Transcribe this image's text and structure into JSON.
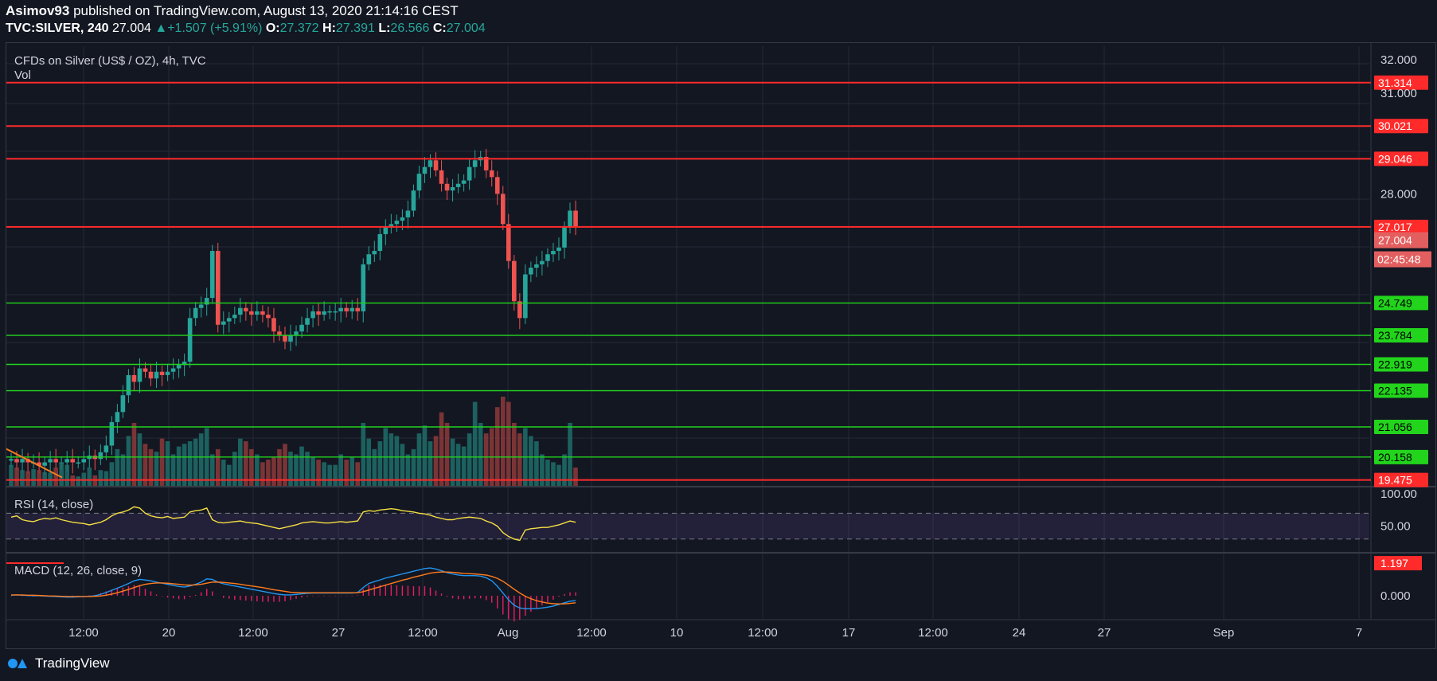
{
  "header": {
    "author": "Asimov93",
    "published": "published on TradingView.com, August 13, 2020 21:14:16 CEST",
    "symbol": "TVC:SILVER, 240",
    "last": "27.004",
    "change_arrow": "▲",
    "change": "+1.507 (+5.91%)",
    "o_label": "O:",
    "o": "27.372",
    "h_label": "H:",
    "h": "27.391",
    "l_label": "L:",
    "l": "26.566",
    "c_label": "C:",
    "c": "27.004"
  },
  "footer": {
    "brand": "TradingView"
  },
  "colors": {
    "background": "#131722",
    "up": "#26a69a",
    "down": "#ef5350",
    "resistance": "#ff2b2b",
    "support": "#22d41c",
    "rsi": "#f5e043",
    "macd": "#2196f3",
    "signal": "#ff7b1c",
    "histogram": "#e91e63"
  },
  "chart_data": [
    {
      "type": "candlestick",
      "title": "CFDs on Silver (US$ / OZ), 4h, TVC",
      "volume_label": "Vol",
      "ylim": [
        19.3,
        32.4
      ],
      "y_ticks": [
        "32.000",
        "31.000",
        "28.000"
      ],
      "x_ticks": [
        "12:00",
        "20",
        "12:00",
        "27",
        "12:00",
        "Aug",
        "12:00",
        "10",
        "12:00",
        "17",
        "12:00",
        "24",
        "27",
        "Sep",
        "7"
      ],
      "resistance_levels": [
        31.314,
        30.021,
        29.046,
        27.017,
        19.475
      ],
      "support_levels": [
        24.749,
        23.784,
        22.919,
        22.135,
        21.056,
        20.158
      ],
      "level_labels": {
        "31.314": "31.314",
        "30.021": "30.021",
        "29.046": "29.046",
        "27.017": "27.017",
        "19.475": "19.475",
        "24.749": "24.749",
        "23.784": "23.784",
        "22.919": "22.919",
        "22.135": "22.135",
        "21.056": "21.056",
        "20.158": "20.158"
      },
      "last_price": "27.004",
      "countdown": "02:45:48",
      "close_path": [
        20.1,
        20.0,
        20.1,
        20.0,
        20.0,
        19.9,
        20.0,
        20.1,
        20.0,
        20.0,
        20.1,
        20.0,
        20.0,
        20.1,
        20.2,
        20.1,
        20.3,
        20.5,
        21.2,
        21.5,
        22.0,
        22.6,
        22.4,
        22.8,
        22.7,
        22.5,
        22.7,
        22.6,
        22.7,
        22.8,
        22.9,
        23.0,
        24.3,
        24.6,
        24.7,
        24.9,
        26.3,
        24.1,
        24.2,
        24.3,
        24.4,
        24.6,
        24.5,
        24.4,
        24.5,
        24.4,
        24.3,
        23.9,
        23.8,
        23.6,
        23.8,
        23.9,
        24.1,
        24.3,
        24.5,
        24.4,
        24.5,
        24.5,
        24.5,
        24.6,
        24.5,
        24.6,
        24.5,
        25.9,
        26.2,
        26.3,
        26.8,
        27.0,
        27.1,
        27.2,
        27.3,
        27.5,
        28.1,
        28.6,
        28.8,
        29.0,
        28.7,
        28.3,
        28.1,
        28.2,
        28.3,
        28.4,
        28.8,
        29.0,
        29.1,
        28.7,
        28.5,
        28.0,
        27.1,
        26.0,
        24.8,
        24.3,
        25.6,
        25.8,
        25.9,
        26.0,
        26.2,
        26.3,
        26.4,
        27.0,
        27.5,
        27.004
      ],
      "volume": [
        40,
        35,
        30,
        28,
        32,
        30,
        26,
        25,
        35,
        45,
        40,
        20,
        18,
        25,
        35,
        20,
        30,
        28,
        45,
        70,
        60,
        95,
        120,
        100,
        80,
        70,
        65,
        90,
        85,
        60,
        75,
        80,
        85,
        90,
        100,
        110,
        60,
        70,
        50,
        40,
        65,
        90,
        85,
        70,
        60,
        45,
        50,
        55,
        70,
        80,
        65,
        60,
        75,
        65,
        55,
        50,
        45,
        40,
        40,
        60,
        50,
        55,
        45,
        120,
        90,
        70,
        85,
        110,
        100,
        95,
        80,
        60,
        70,
        100,
        115,
        85,
        95,
        140,
        120,
        90,
        80,
        75,
        100,
        160,
        120,
        100,
        110,
        150,
        170,
        160,
        120,
        100,
        110,
        95,
        85,
        60,
        50,
        45,
        40,
        60,
        120,
        35
      ]
    },
    {
      "type": "line",
      "title": "RSI (14, close)",
      "ylim": [
        10,
        110
      ],
      "y_ticks": [
        "100.00",
        "50.00"
      ],
      "bands": [
        70,
        30
      ],
      "values": [
        64,
        66,
        60,
        58,
        57,
        60,
        62,
        61,
        63,
        60,
        58,
        56,
        55,
        54,
        52,
        54,
        56,
        60,
        66,
        70,
        72,
        75,
        80,
        78,
        70,
        66,
        64,
        63,
        65,
        62,
        63,
        64,
        72,
        74,
        75,
        78,
        60,
        56,
        55,
        56,
        57,
        58,
        56,
        55,
        54,
        52,
        50,
        48,
        46,
        48,
        50,
        52,
        55,
        56,
        57,
        56,
        55,
        55,
        56,
        57,
        56,
        57,
        58,
        72,
        74,
        73,
        75,
        76,
        77,
        76,
        74,
        73,
        72,
        70,
        69,
        67,
        64,
        62,
        60,
        60,
        62,
        63,
        64,
        63,
        62,
        58,
        55,
        50,
        40,
        34,
        30,
        28,
        44,
        46,
        47,
        48,
        48,
        50,
        52,
        55,
        58,
        56
      ]
    },
    {
      "type": "line",
      "title": "MACD (12, 26, close, 9)",
      "ylim": [
        -0.85,
        1.55
      ],
      "y_ticks": [
        "1.197",
        "0.000"
      ],
      "series": [
        {
          "values": [
            0.02,
            0.03,
            0.02,
            0.01,
            0.0,
            0.0,
            -0.01,
            -0.02,
            -0.03,
            -0.04,
            -0.05,
            -0.05,
            -0.04,
            -0.03,
            -0.02,
            0.0,
            0.05,
            0.12,
            0.2,
            0.28,
            0.36,
            0.45,
            0.55,
            0.6,
            0.58,
            0.55,
            0.5,
            0.46,
            0.42,
            0.38,
            0.34,
            0.32,
            0.36,
            0.42,
            0.5,
            0.62,
            0.6,
            0.5,
            0.44,
            0.4,
            0.36,
            0.32,
            0.28,
            0.24,
            0.2,
            0.16,
            0.12,
            0.08,
            0.05,
            0.03,
            0.03,
            0.05,
            0.07,
            0.09,
            0.1,
            0.1,
            0.1,
            0.1,
            0.1,
            0.1,
            0.1,
            0.1,
            0.12,
            0.3,
            0.45,
            0.52,
            0.58,
            0.65,
            0.7,
            0.75,
            0.8,
            0.85,
            0.9,
            0.95,
            1.0,
            1.02,
            0.98,
            0.92,
            0.85,
            0.8,
            0.76,
            0.74,
            0.74,
            0.74,
            0.72,
            0.66,
            0.55,
            0.35,
            0.1,
            -0.15,
            -0.35,
            -0.45,
            -0.48,
            -0.48,
            -0.47,
            -0.45,
            -0.42,
            -0.38,
            -0.32,
            -0.26,
            -0.2,
            -0.18
          ]
        },
        {
          "values": [
            0.03,
            0.03,
            0.03,
            0.02,
            0.02,
            0.01,
            0.0,
            -0.01,
            -0.01,
            -0.02,
            -0.03,
            -0.03,
            -0.03,
            -0.03,
            -0.03,
            -0.02,
            -0.01,
            0.02,
            0.06,
            0.11,
            0.17,
            0.23,
            0.3,
            0.37,
            0.42,
            0.45,
            0.47,
            0.47,
            0.46,
            0.44,
            0.42,
            0.4,
            0.39,
            0.4,
            0.42,
            0.46,
            0.5,
            0.5,
            0.49,
            0.47,
            0.45,
            0.42,
            0.39,
            0.36,
            0.33,
            0.3,
            0.26,
            0.22,
            0.19,
            0.16,
            0.13,
            0.12,
            0.11,
            0.11,
            0.11,
            0.11,
            0.11,
            0.11,
            0.11,
            0.11,
            0.11,
            0.11,
            0.11,
            0.15,
            0.21,
            0.27,
            0.33,
            0.39,
            0.45,
            0.51,
            0.57,
            0.62,
            0.68,
            0.73,
            0.78,
            0.83,
            0.86,
            0.87,
            0.87,
            0.86,
            0.84,
            0.82,
            0.81,
            0.8,
            0.78,
            0.76,
            0.71,
            0.64,
            0.53,
            0.39,
            0.24,
            0.1,
            -0.02,
            -0.11,
            -0.18,
            -0.23,
            -0.27,
            -0.29,
            -0.3,
            -0.3,
            -0.28,
            -0.26
          ]
        }
      ]
    }
  ]
}
